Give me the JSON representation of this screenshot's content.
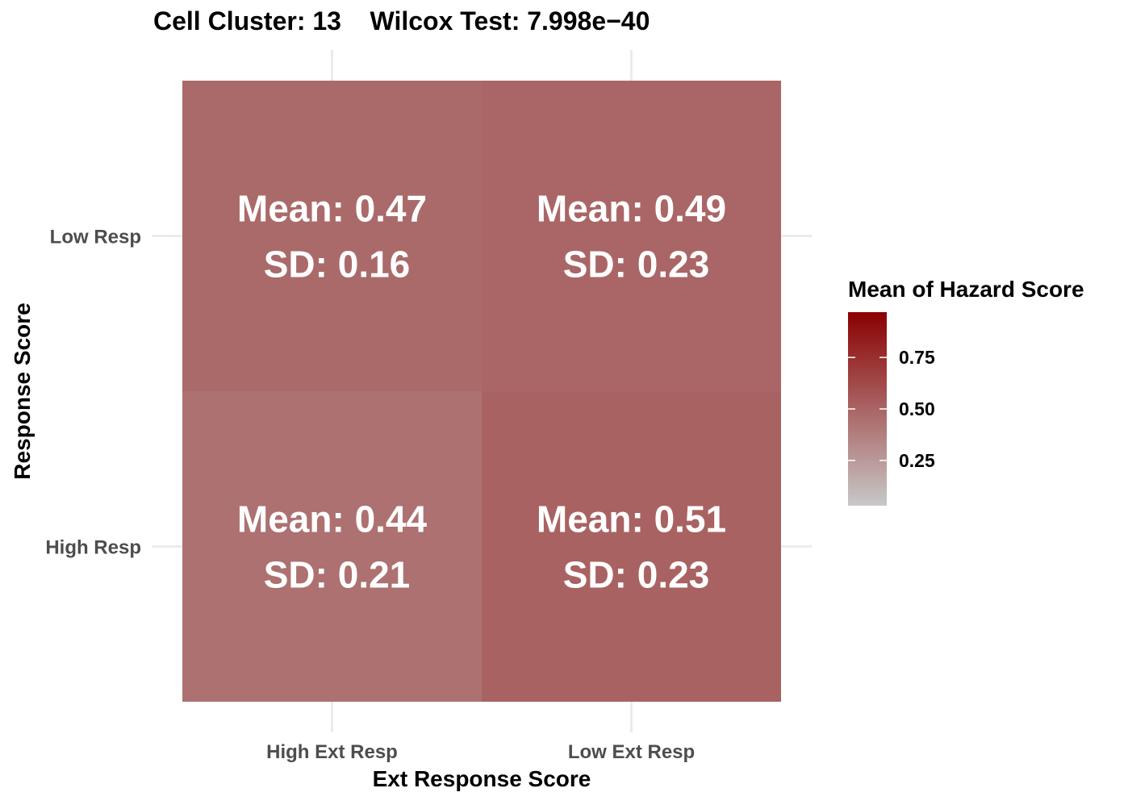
{
  "chart_data": {
    "type": "heatmap",
    "title": "Cell Cluster: 13    Wilcox Test: 7.998e−40",
    "xlabel": "Ext Response Score",
    "ylabel": "Response Score",
    "x_categories": [
      "High Ext Resp",
      "Low Ext Resp"
    ],
    "y_categories": [
      "High Resp",
      "Low Resp"
    ],
    "cells": [
      {
        "x": "High Ext Resp",
        "y": "Low Resp",
        "mean": 0.47,
        "sd": 0.16,
        "mean_label": "Mean: 0.47",
        "sd_label": "SD: 0.16"
      },
      {
        "x": "Low Ext Resp",
        "y": "Low Resp",
        "mean": 0.49,
        "sd": 0.23,
        "mean_label": "Mean: 0.49",
        "sd_label": "SD: 0.23"
      },
      {
        "x": "High Ext Resp",
        "y": "High Resp",
        "mean": 0.44,
        "sd": 0.21,
        "mean_label": "Mean: 0.44",
        "sd_label": "SD: 0.21"
      },
      {
        "x": "Low Ext Resp",
        "y": "High Resp",
        "mean": 0.51,
        "sd": 0.23,
        "mean_label": "Mean: 0.51",
        "sd_label": "SD: 0.23"
      }
    ],
    "legend": {
      "title": "Mean of Hazard Score",
      "placement": "right",
      "range": [
        0.03,
        0.97
      ],
      "ticks": [
        0.25,
        0.5,
        0.75
      ],
      "tick_labels": [
        "0.25",
        "0.50",
        "0.75"
      ],
      "low_color": "#c8c8c8",
      "high_color": "#8b0000"
    },
    "grid": true
  }
}
